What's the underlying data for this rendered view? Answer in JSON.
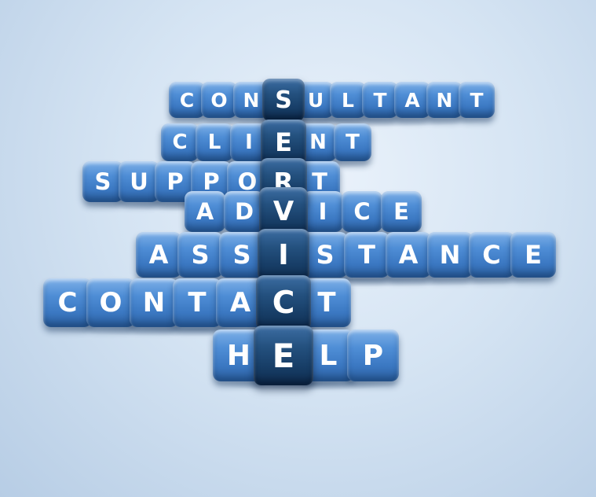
{
  "words": [
    {
      "name": "consultant",
      "text": "CONSULTANT",
      "vertical_index": 3
    },
    {
      "name": "client",
      "text": "CLIENT",
      "vertical_index": 3
    },
    {
      "name": "support",
      "text": "SUPPORT",
      "vertical_index": 5
    },
    {
      "name": "advice",
      "text": "ADVICE",
      "vertical_index": 2
    },
    {
      "name": "assistance",
      "text": "ASSISTANCE",
      "vertical_index": 3
    },
    {
      "name": "contact",
      "text": "CONTACT",
      "vertical_index": 5
    },
    {
      "name": "help",
      "text": "HELP",
      "vertical_index": 1
    }
  ],
  "vertical_word": {
    "name": "service",
    "text": "SERVICE"
  },
  "colors": {
    "cube_light": "#4f8ed6",
    "cube_dark": "#173d66",
    "letter": "#ffffff",
    "background": "#d5e4f3"
  }
}
